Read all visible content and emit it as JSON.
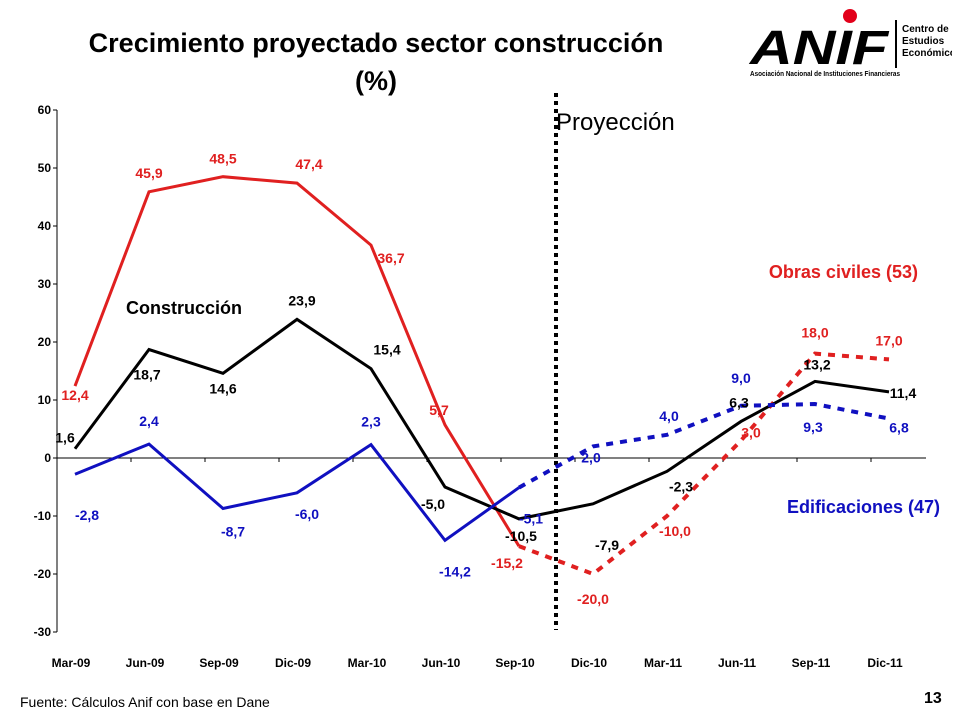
{
  "title_line1": "Crecimiento proyectado sector construcción",
  "title_line2": "(%)",
  "logo": {
    "wordmark": "ANIF",
    "tagline": "Asociación Nacional de Instituciones Financieras",
    "center_line1": "Centro de",
    "center_line2": "Estudios",
    "center_line3": "Económicos",
    "accent_color": "#e2001a"
  },
  "source": "Fuente: Cálculos Anif con base en  Dane",
  "page_number": "13",
  "chart_data": {
    "type": "line",
    "categories": [
      "Mar-09",
      "Jun-09",
      "Sep-09",
      "Dic-09",
      "Mar-10",
      "Jun-10",
      "Sep-10",
      "Dic-10",
      "Mar-11",
      "Jun-11",
      "Sep-11",
      "Dic-11"
    ],
    "ylim": [
      -30,
      60
    ],
    "yticks": [
      -30,
      -20,
      -10,
      0,
      10,
      20,
      30,
      40,
      50,
      60
    ],
    "projection_label": "Proyección",
    "projection_start": "Sep-10",
    "series": [
      {
        "name": "Obras civiles (53)",
        "color": "#e02020",
        "values": [
          12.4,
          45.9,
          48.5,
          47.4,
          36.7,
          5.7,
          -15.2,
          -20.0,
          -10.0,
          3.0,
          18.0,
          17.0
        ],
        "labels": [
          "12,4",
          "45,9",
          "48,5",
          "47,4",
          "36,7",
          "5,7",
          "-15,2",
          "-20,0",
          "-10,0",
          "3,0",
          "18,0",
          "17,0"
        ],
        "projected_from_index": 6
      },
      {
        "name": "Construcción",
        "color": "#000000",
        "values": [
          1.6,
          18.7,
          14.6,
          23.9,
          15.4,
          -5.0,
          -10.5,
          -7.9,
          -2.3,
          6.3,
          13.2,
          11.4
        ],
        "labels": [
          "1,6",
          "18,7",
          "14,6",
          "23,9",
          "15,4",
          "-5,0",
          "-10,5",
          "-7,9",
          "-2,3",
          "6,3",
          "13,2",
          "11,4"
        ],
        "projected_from_index": null
      },
      {
        "name": "Edificaciones (47)",
        "color": "#1010c0",
        "values": [
          -2.8,
          2.4,
          -8.7,
          -6.0,
          2.3,
          -14.2,
          -5.1,
          2.0,
          4.0,
          9.0,
          9.3,
          6.8
        ],
        "labels": [
          "-2,8",
          "2,4",
          "-8,7",
          "-6,0",
          "2,3",
          "-14,2",
          "-5,1",
          "2,0",
          "4,0",
          "9,0",
          "9,3",
          "6,8"
        ],
        "projected_from_index": 6
      }
    ]
  }
}
